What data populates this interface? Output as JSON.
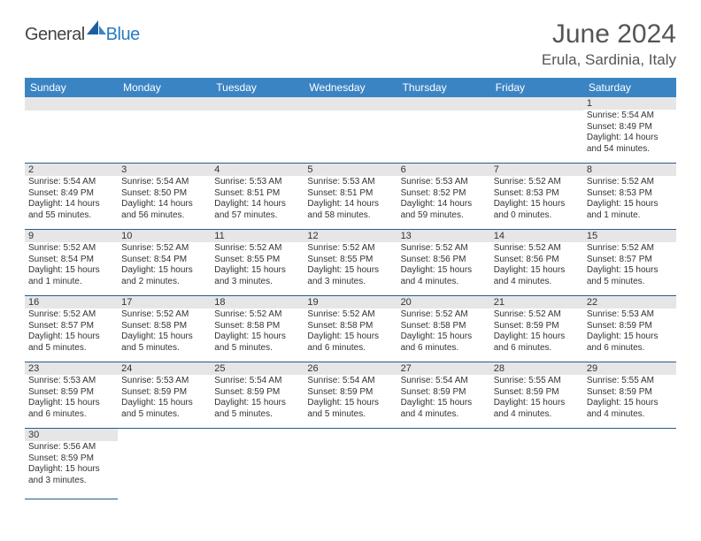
{
  "brand": {
    "part1": "General",
    "part2": "Blue"
  },
  "title": "June 2024",
  "location": "Erula, Sardinia, Italy",
  "colors": {
    "header_bg": "#3b84c4",
    "header_text": "#ffffff",
    "daynum_bg": "#e6e6e6",
    "cell_border": "#2a5c8a",
    "title_color": "#555555",
    "logo_gray": "#444444",
    "logo_blue": "#2a7ac0"
  },
  "day_headers": [
    "Sunday",
    "Monday",
    "Tuesday",
    "Wednesday",
    "Thursday",
    "Friday",
    "Saturday"
  ],
  "weeks": [
    [
      null,
      null,
      null,
      null,
      null,
      null,
      {
        "n": "1",
        "sr": "Sunrise: 5:54 AM",
        "ss": "Sunset: 8:49 PM",
        "dl": "Daylight: 14 hours and 54 minutes."
      }
    ],
    [
      {
        "n": "2",
        "sr": "Sunrise: 5:54 AM",
        "ss": "Sunset: 8:49 PM",
        "dl": "Daylight: 14 hours and 55 minutes."
      },
      {
        "n": "3",
        "sr": "Sunrise: 5:54 AM",
        "ss": "Sunset: 8:50 PM",
        "dl": "Daylight: 14 hours and 56 minutes."
      },
      {
        "n": "4",
        "sr": "Sunrise: 5:53 AM",
        "ss": "Sunset: 8:51 PM",
        "dl": "Daylight: 14 hours and 57 minutes."
      },
      {
        "n": "5",
        "sr": "Sunrise: 5:53 AM",
        "ss": "Sunset: 8:51 PM",
        "dl": "Daylight: 14 hours and 58 minutes."
      },
      {
        "n": "6",
        "sr": "Sunrise: 5:53 AM",
        "ss": "Sunset: 8:52 PM",
        "dl": "Daylight: 14 hours and 59 minutes."
      },
      {
        "n": "7",
        "sr": "Sunrise: 5:52 AM",
        "ss": "Sunset: 8:53 PM",
        "dl": "Daylight: 15 hours and 0 minutes."
      },
      {
        "n": "8",
        "sr": "Sunrise: 5:52 AM",
        "ss": "Sunset: 8:53 PM",
        "dl": "Daylight: 15 hours and 1 minute."
      }
    ],
    [
      {
        "n": "9",
        "sr": "Sunrise: 5:52 AM",
        "ss": "Sunset: 8:54 PM",
        "dl": "Daylight: 15 hours and 1 minute."
      },
      {
        "n": "10",
        "sr": "Sunrise: 5:52 AM",
        "ss": "Sunset: 8:54 PM",
        "dl": "Daylight: 15 hours and 2 minutes."
      },
      {
        "n": "11",
        "sr": "Sunrise: 5:52 AM",
        "ss": "Sunset: 8:55 PM",
        "dl": "Daylight: 15 hours and 3 minutes."
      },
      {
        "n": "12",
        "sr": "Sunrise: 5:52 AM",
        "ss": "Sunset: 8:55 PM",
        "dl": "Daylight: 15 hours and 3 minutes."
      },
      {
        "n": "13",
        "sr": "Sunrise: 5:52 AM",
        "ss": "Sunset: 8:56 PM",
        "dl": "Daylight: 15 hours and 4 minutes."
      },
      {
        "n": "14",
        "sr": "Sunrise: 5:52 AM",
        "ss": "Sunset: 8:56 PM",
        "dl": "Daylight: 15 hours and 4 minutes."
      },
      {
        "n": "15",
        "sr": "Sunrise: 5:52 AM",
        "ss": "Sunset: 8:57 PM",
        "dl": "Daylight: 15 hours and 5 minutes."
      }
    ],
    [
      {
        "n": "16",
        "sr": "Sunrise: 5:52 AM",
        "ss": "Sunset: 8:57 PM",
        "dl": "Daylight: 15 hours and 5 minutes."
      },
      {
        "n": "17",
        "sr": "Sunrise: 5:52 AM",
        "ss": "Sunset: 8:58 PM",
        "dl": "Daylight: 15 hours and 5 minutes."
      },
      {
        "n": "18",
        "sr": "Sunrise: 5:52 AM",
        "ss": "Sunset: 8:58 PM",
        "dl": "Daylight: 15 hours and 5 minutes."
      },
      {
        "n": "19",
        "sr": "Sunrise: 5:52 AM",
        "ss": "Sunset: 8:58 PM",
        "dl": "Daylight: 15 hours and 6 minutes."
      },
      {
        "n": "20",
        "sr": "Sunrise: 5:52 AM",
        "ss": "Sunset: 8:58 PM",
        "dl": "Daylight: 15 hours and 6 minutes."
      },
      {
        "n": "21",
        "sr": "Sunrise: 5:52 AM",
        "ss": "Sunset: 8:59 PM",
        "dl": "Daylight: 15 hours and 6 minutes."
      },
      {
        "n": "22",
        "sr": "Sunrise: 5:53 AM",
        "ss": "Sunset: 8:59 PM",
        "dl": "Daylight: 15 hours and 6 minutes."
      }
    ],
    [
      {
        "n": "23",
        "sr": "Sunrise: 5:53 AM",
        "ss": "Sunset: 8:59 PM",
        "dl": "Daylight: 15 hours and 6 minutes."
      },
      {
        "n": "24",
        "sr": "Sunrise: 5:53 AM",
        "ss": "Sunset: 8:59 PM",
        "dl": "Daylight: 15 hours and 5 minutes."
      },
      {
        "n": "25",
        "sr": "Sunrise: 5:54 AM",
        "ss": "Sunset: 8:59 PM",
        "dl": "Daylight: 15 hours and 5 minutes."
      },
      {
        "n": "26",
        "sr": "Sunrise: 5:54 AM",
        "ss": "Sunset: 8:59 PM",
        "dl": "Daylight: 15 hours and 5 minutes."
      },
      {
        "n": "27",
        "sr": "Sunrise: 5:54 AM",
        "ss": "Sunset: 8:59 PM",
        "dl": "Daylight: 15 hours and 4 minutes."
      },
      {
        "n": "28",
        "sr": "Sunrise: 5:55 AM",
        "ss": "Sunset: 8:59 PM",
        "dl": "Daylight: 15 hours and 4 minutes."
      },
      {
        "n": "29",
        "sr": "Sunrise: 5:55 AM",
        "ss": "Sunset: 8:59 PM",
        "dl": "Daylight: 15 hours and 4 minutes."
      }
    ],
    [
      {
        "n": "30",
        "sr": "Sunrise: 5:56 AM",
        "ss": "Sunset: 8:59 PM",
        "dl": "Daylight: 15 hours and 3 minutes."
      },
      null,
      null,
      null,
      null,
      null,
      null
    ]
  ]
}
